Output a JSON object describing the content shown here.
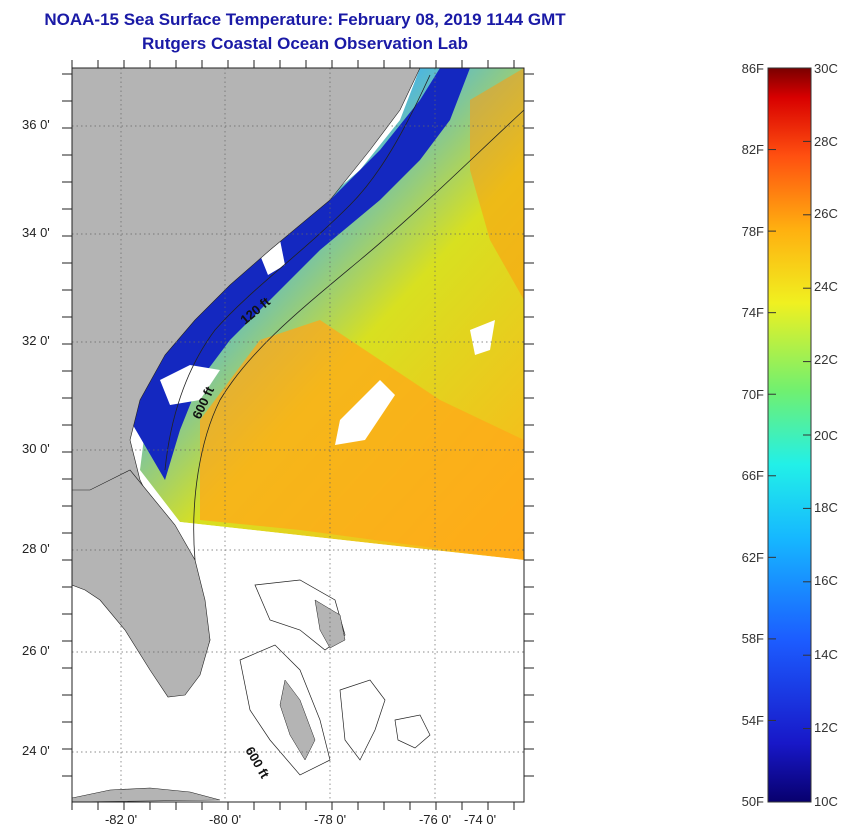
{
  "title": {
    "line1": "NOAA-15 Sea Surface Temperature:  February 08, 2019 1144 GMT",
    "line2": "Rutgers Coastal Ocean Observation Lab"
  },
  "map": {
    "lat_labels": [
      "36 0'",
      "34 0'",
      "32 0'",
      "30 0'",
      "28 0'",
      "26 0'",
      "24 0'"
    ],
    "lon_labels": [
      "-82 0'",
      "-80 0'",
      "-78 0'",
      "-76 0'",
      "-74 0'"
    ],
    "isobath_labels": [
      "120 ft",
      "600 ft",
      "600 ft"
    ],
    "colors": {
      "land": "#b4b4b4",
      "no_data": "#ffffff",
      "cold_coastal": "#1020b8",
      "mid": "#2aa6ff",
      "warm": "#ff9a10"
    }
  },
  "colorbar": {
    "fahrenheit_labels": [
      "86F",
      "82F",
      "78F",
      "74F",
      "70F",
      "66F",
      "62F",
      "58F",
      "54F",
      "50F"
    ],
    "celsius_labels": [
      "30C",
      "28C",
      "26C",
      "24C",
      "22C",
      "20C",
      "18C",
      "16C",
      "14C",
      "12C",
      "10C"
    ],
    "range_f": [
      50,
      86
    ],
    "range_c": [
      10,
      30
    ]
  }
}
